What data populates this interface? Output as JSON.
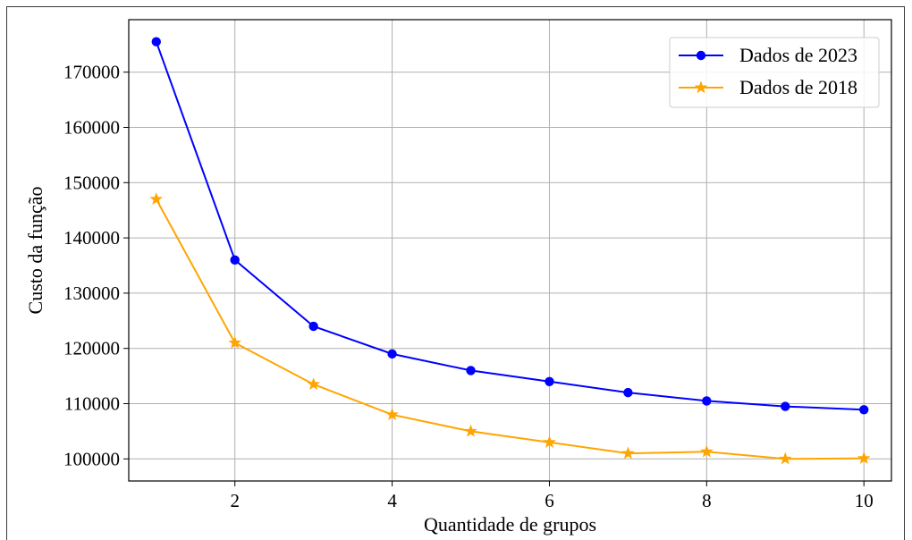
{
  "chart_data": {
    "type": "line",
    "xlabel": "Quantidade de grupos",
    "ylabel": "Custo da função",
    "xlim": [
      0.65,
      10.35
    ],
    "ylim": [
      96000,
      179500
    ],
    "x_ticks": [
      2,
      4,
      6,
      8,
      10
    ],
    "y_ticks": [
      100000,
      110000,
      120000,
      130000,
      140000,
      150000,
      160000,
      170000
    ],
    "grid": true,
    "legend_position": "top-right",
    "series": [
      {
        "name": "Dados de 2023",
        "color": "#0000ff",
        "marker": "circle",
        "x": [
          1,
          2,
          3,
          4,
          5,
          6,
          7,
          8,
          9,
          10
        ],
        "y": [
          175500,
          136000,
          124000,
          119000,
          116000,
          114000,
          112000,
          110500,
          109500,
          108900
        ]
      },
      {
        "name": "Dados de 2018",
        "color": "#ffa500",
        "marker": "star",
        "x": [
          1,
          2,
          3,
          4,
          5,
          6,
          7,
          8,
          9,
          10
        ],
        "y": [
          147000,
          121000,
          113500,
          108000,
          105000,
          103000,
          101000,
          101300,
          100000,
          100100
        ]
      }
    ]
  }
}
